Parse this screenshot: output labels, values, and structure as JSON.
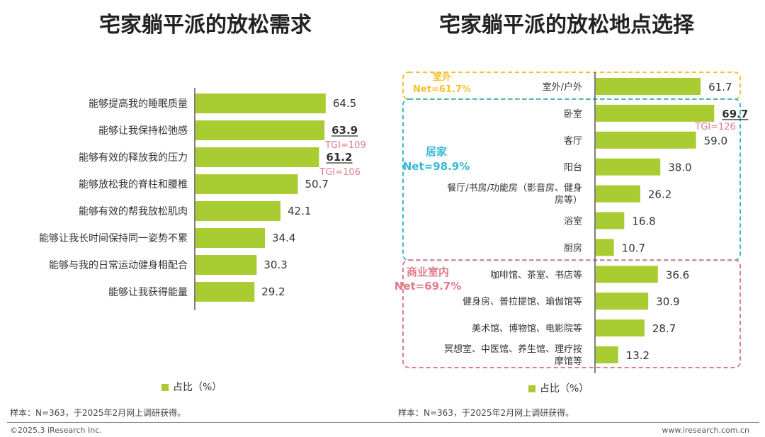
{
  "colors": {
    "bar": "#a9cc32",
    "tgi": "#e07b8a",
    "group_outdoor": "#f5c12e",
    "group_home": "#39b8d6",
    "group_commercial": "#e07b8a"
  },
  "footer": {
    "copyright": "©2025.3 iResearch Inc.",
    "url": "www.iresearch.com.cn"
  },
  "chart_data": [
    {
      "type": "bar",
      "orientation": "horizontal",
      "title": "宅家躺平派的放松需求",
      "categories": [
        "能够提高我的睡眠质量",
        "能够让我保持松弛感",
        "能够有效的释放我的压力",
        "能够放松我的脊柱和腰椎",
        "能够有效的帮我放松肌肉",
        "能够让我长时间保持同一姿势不累",
        "能够与我的日常运动健身相配合",
        "能够让我获得能量"
      ],
      "values": [
        64.5,
        63.9,
        61.2,
        50.7,
        42.1,
        34.4,
        30.3,
        29.2
      ],
      "value_labels": [
        "64.5",
        "63.9",
        "61.2",
        "50.7",
        "42.1",
        "34.4",
        "30.3",
        "29.2"
      ],
      "highlight": [
        false,
        true,
        true,
        false,
        false,
        false,
        false,
        false
      ],
      "tgi": [
        "",
        "TGI=109",
        "TGI=106",
        "",
        "",
        "",
        "",
        ""
      ],
      "legend": "占比（%）",
      "note": "样本：N=363，于2025年2月网上调研获得。",
      "xlim": [
        0,
        100
      ]
    },
    {
      "type": "bar",
      "orientation": "horizontal",
      "title": "宅家躺平派的放松地点选择",
      "categories": [
        "室外/户外",
        "卧室",
        "客厅",
        "阳台",
        "餐厅/书房/功能房（影音房、健身房等）",
        "浴室",
        "厨房",
        "咖啡馆、茶室、书店等",
        "健身房、普拉提馆、瑜伽馆等",
        "美术馆、博物馆、电影院等",
        "冥想室、中医馆、养生馆、理疗按摩馆等"
      ],
      "category_lines": [
        [
          "室外/户外"
        ],
        [
          "卧室"
        ],
        [
          "客厅"
        ],
        [
          "阳台"
        ],
        [
          "餐厅/书房/功能房（影音房、健身",
          "房等）"
        ],
        [
          "浴室"
        ],
        [
          "厨房"
        ],
        [
          "咖啡馆、茶室、书店等"
        ],
        [
          "健身房、普拉提馆、瑜伽馆等"
        ],
        [
          "美术馆、博物馆、电影院等"
        ],
        [
          "冥想室、中医馆、养生馆、理疗按",
          "摩馆等"
        ]
      ],
      "values": [
        61.7,
        69.7,
        59.0,
        38.0,
        26.2,
        16.8,
        10.7,
        36.6,
        30.9,
        28.7,
        13.2
      ],
      "value_labels": [
        "61.7",
        "69.7",
        "59.0",
        "38.0",
        "26.2",
        "16.8",
        "10.7",
        "36.6",
        "30.9",
        "28.7",
        "13.2"
      ],
      "highlight": [
        false,
        true,
        false,
        false,
        false,
        false,
        false,
        false,
        false,
        false,
        false
      ],
      "tgi": [
        "",
        "TGI=126",
        "",
        "",
        "",
        "",
        "",
        "",
        "",
        "",
        ""
      ],
      "groups": [
        {
          "label": "室外",
          "net": "Net=61.7%",
          "start": 0,
          "end": 0,
          "color_key": "group_outdoor"
        },
        {
          "label": "居家",
          "net": "Net=98.9%",
          "start": 1,
          "end": 6,
          "color_key": "group_home"
        },
        {
          "label": "商业室内",
          "net": "Net=69.7%",
          "start": 7,
          "end": 10,
          "color_key": "group_commercial"
        }
      ],
      "legend": "占比（%）",
      "note": "样本：N=363，于2025年2月网上调研获得。",
      "xlim": [
        0,
        100
      ]
    }
  ]
}
